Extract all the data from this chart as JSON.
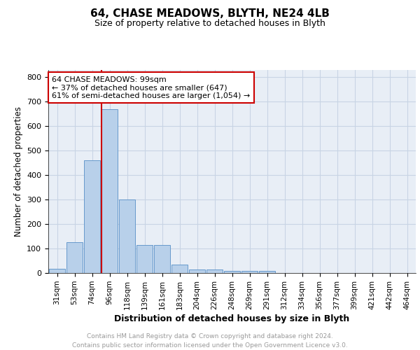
{
  "title1": "64, CHASE MEADOWS, BLYTH, NE24 4LB",
  "title2": "Size of property relative to detached houses in Blyth",
  "xlabel": "Distribution of detached houses by size in Blyth",
  "ylabel": "Number of detached properties",
  "categories": [
    "31sqm",
    "53sqm",
    "74sqm",
    "96sqm",
    "118sqm",
    "139sqm",
    "161sqm",
    "183sqm",
    "204sqm",
    "226sqm",
    "248sqm",
    "269sqm",
    "291sqm",
    "312sqm",
    "334sqm",
    "356sqm",
    "377sqm",
    "399sqm",
    "421sqm",
    "442sqm",
    "464sqm"
  ],
  "values": [
    18,
    125,
    460,
    670,
    300,
    115,
    115,
    35,
    15,
    15,
    10,
    10,
    10,
    0,
    0,
    0,
    0,
    0,
    0,
    0,
    0
  ],
  "bar_color": "#b8d0ea",
  "bar_edge_color": "#6699cc",
  "grid_color": "#c8d4e4",
  "background_color": "#e8eef6",
  "vline_index": 3,
  "vline_color": "#cc0000",
  "annotation_text": "64 CHASE MEADOWS: 99sqm\n← 37% of detached houses are smaller (647)\n61% of semi-detached houses are larger (1,054) →",
  "annotation_box_color": "#ffffff",
  "annotation_box_edge": "#cc0000",
  "ylim": [
    0,
    830
  ],
  "yticks": [
    0,
    100,
    200,
    300,
    400,
    500,
    600,
    700,
    800
  ],
  "footnote_line1": "Contains HM Land Registry data © Crown copyright and database right 2024.",
  "footnote_line2": "Contains public sector information licensed under the Open Government Licence v3.0.",
  "footnote_color": "#999999"
}
